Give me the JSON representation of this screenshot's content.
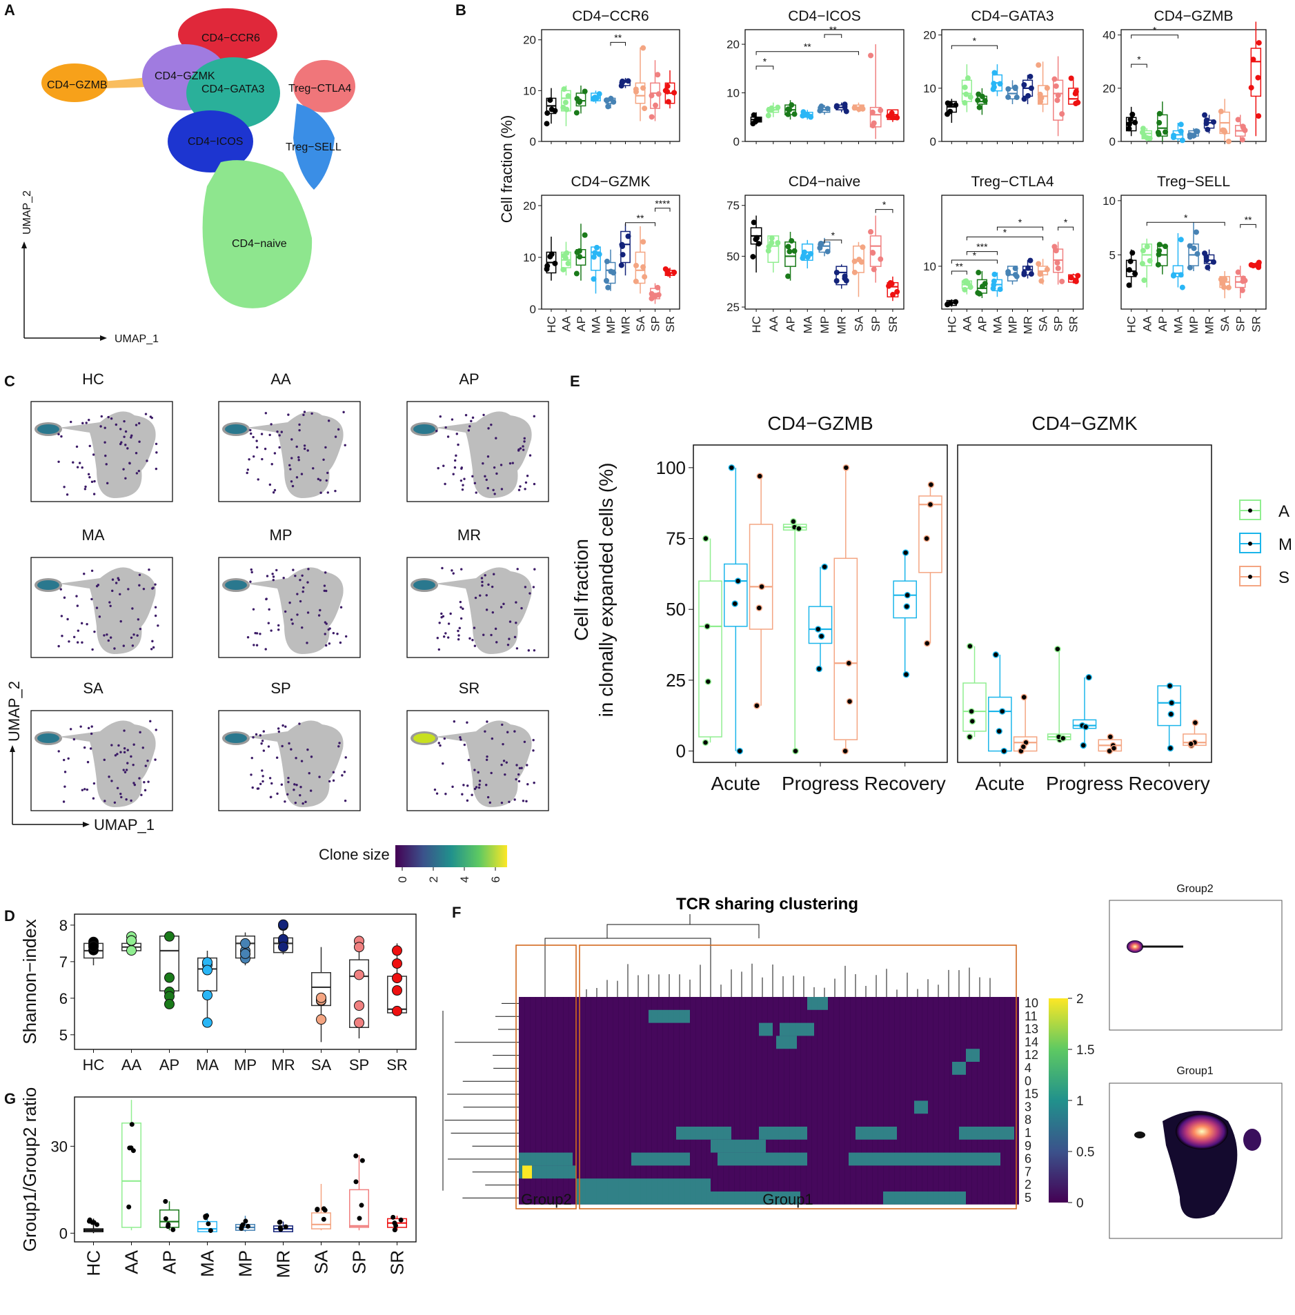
{
  "panels": {
    "A": "A",
    "B": "B",
    "C": "C",
    "D": "D",
    "E": "E",
    "F": "F",
    "G": "G"
  },
  "colors": {
    "HC": "#000000",
    "AA": "#90EE90",
    "AP": "#1a7a1a",
    "MA": "#29b6f6",
    "MP": "#4682b4",
    "MR": "#13237a",
    "SA": "#f4a582",
    "SP": "#f08080",
    "SR": "#ee1111",
    "A": "#90EE90",
    "M": "#1ab5ea",
    "S": "#f4a582"
  },
  "groups": [
    "HC",
    "AA",
    "AP",
    "MA",
    "MP",
    "MR",
    "SA",
    "SP",
    "SR"
  ],
  "umapA": {
    "labels": [
      "CD4−CCR6",
      "CD4−GZMB",
      "CD4−GZMK",
      "CD4−GATA3",
      "Treg−CTLA4",
      "CD4−ICOS",
      "Treg−SELL",
      "CD4−naive"
    ],
    "xlabel": "UMAP_1",
    "ylabel": "UMAP_2"
  },
  "clone_legend": {
    "title": "Clone size",
    "ticks": [
      "0",
      "2",
      "4",
      "6"
    ]
  },
  "chart_data": [
    {
      "panel": "B",
      "type": "box",
      "ylabel": "Cell fraction (%)",
      "facets": [
        {
          "title": "CD4−CCR6",
          "ylim": [
            0,
            22
          ],
          "yticks": [
            0,
            10,
            20
          ],
          "medians": [
            7,
            8.5,
            8,
            8.6,
            8,
            11.7,
            9,
            9.5,
            9.5
          ],
          "q1": [
            5.5,
            6,
            7,
            8,
            7.5,
            11,
            7.5,
            6.5,
            7.5
          ],
          "q3": [
            8.5,
            10,
            9.5,
            9.5,
            8.5,
            12,
            11.5,
            11.5,
            11.5
          ],
          "wlo": [
            3.5,
            3,
            5.5,
            7.5,
            6.5,
            10.5,
            4,
            4,
            6.5
          ],
          "whi": [
            10.5,
            11,
            11,
            10,
            9,
            12.5,
            18.5,
            16,
            14
          ],
          "brackets": [
            {
              "a": "MP",
              "b": "MR",
              "label": "**",
              "y": 19.5
            }
          ]
        },
        {
          "title": "CD4−ICOS",
          "ylim": [
            0,
            23
          ],
          "yticks": [
            0,
            10,
            20
          ],
          "medians": [
            4.5,
            6.5,
            6.5,
            5.5,
            6.5,
            7,
            7,
            5.5,
            5.5
          ],
          "q1": [
            4,
            6,
            5.5,
            5,
            6,
            6.5,
            6.5,
            3,
            4.5
          ],
          "q3": [
            5,
            7,
            7.5,
            6,
            7,
            7.5,
            7.5,
            7,
            6.5
          ],
          "wlo": [
            3.5,
            5,
            4.5,
            4.5,
            5.5,
            6,
            6,
            0.5,
            4
          ],
          "whi": [
            6,
            8,
            8.5,
            6.5,
            7.5,
            8,
            8,
            20,
            6.5
          ],
          "brackets": [
            {
              "a": "HC",
              "b": "AA",
              "label": "*",
              "y": 15.5
            },
            {
              "a": "HC",
              "b": "SA",
              "label": "**",
              "y": 18.5
            },
            {
              "a": "MP",
              "b": "MR",
              "label": "**",
              "y": 22
            }
          ]
        },
        {
          "title": "CD4−GATA3",
          "ylim": [
            0,
            21
          ],
          "yticks": [
            0,
            10,
            20
          ],
          "medians": [
            6.5,
            9,
            7.5,
            11,
            9,
            10,
            8.5,
            9,
            8
          ],
          "q1": [
            5.5,
            7.5,
            7,
            9.5,
            8,
            8.5,
            7,
            4,
            7
          ],
          "q3": [
            7.5,
            11.5,
            8.5,
            12.5,
            10,
            11.5,
            10.5,
            11.5,
            10
          ],
          "wlo": [
            3.5,
            5.5,
            5,
            8.5,
            7,
            7,
            5.5,
            1,
            7
          ],
          "whi": [
            8,
            14.5,
            10,
            14.5,
            11.5,
            12.5,
            15,
            16,
            12
          ],
          "brackets": [
            {
              "a": "HC",
              "b": "MA",
              "label": "*",
              "y": 18
            }
          ]
        },
        {
          "title": "CD4−GZMB",
          "ylim": [
            0,
            42
          ],
          "yticks": [
            0,
            20,
            40
          ],
          "medians": [
            7,
            3,
            5,
            2.5,
            3,
            7,
            7,
            4,
            30
          ],
          "q1": [
            4,
            1,
            2,
            1,
            2,
            5,
            3,
            2,
            17
          ],
          "q3": [
            9,
            4,
            10,
            4,
            4,
            8,
            11,
            6,
            35
          ],
          "wlo": [
            2,
            0,
            0,
            0,
            1,
            3,
            0,
            0,
            2
          ],
          "whi": [
            13,
            5,
            15,
            7,
            5,
            10,
            16,
            10,
            45
          ],
          "brackets": [
            {
              "a": "HC",
              "b": "AA",
              "label": "*",
              "y": 29
            },
            {
              "a": "HC",
              "b": "MA",
              "label": "*",
              "y": 40
            }
          ]
        }
      ]
    },
    {
      "panel": "B2",
      "type": "box",
      "facets": [
        {
          "title": "CD4−GZMK",
          "ylim": [
            0,
            22
          ],
          "yticks": [
            0,
            10,
            20
          ],
          "medians": [
            9,
            9.5,
            10,
            11,
            7.5,
            12.5,
            7.5,
            3,
            7
          ],
          "q1": [
            7,
            8,
            8.5,
            7.5,
            5,
            9,
            5,
            2,
            6.5
          ],
          "q3": [
            11,
            11,
            11.5,
            12,
            9,
            15,
            11,
            4,
            7.5
          ],
          "wlo": [
            5.5,
            6.5,
            5.5,
            3,
            3.5,
            6.5,
            3,
            1,
            6
          ],
          "whi": [
            14,
            13,
            16.5,
            12,
            11.5,
            16.5,
            16,
            5,
            8
          ],
          "brackets": [
            {
              "a": "MR",
              "b": "SP",
              "label": "**",
              "y": 16.7
            },
            {
              "a": "SP",
              "b": "SR",
              "label": "****",
              "y": 19.5
            }
          ]
        },
        {
          "title": "CD4−naive",
          "ylim": [
            24,
            80
          ],
          "yticks": [
            25,
            50,
            75
          ],
          "medians": [
            60,
            55,
            50,
            52,
            55,
            42,
            48,
            55,
            35
          ],
          "q1": [
            56,
            47,
            45,
            48,
            52,
            36,
            42,
            45,
            30
          ],
          "q3": [
            64,
            60,
            57,
            56,
            57,
            45,
            55,
            60,
            37
          ],
          "wlo": [
            42,
            42,
            38,
            44,
            50,
            34,
            30,
            37,
            28
          ],
          "whi": [
            70,
            60,
            62,
            58,
            59,
            46,
            57,
            70,
            40
          ],
          "brackets": [
            {
              "a": "MP",
              "b": "MR",
              "label": "*",
              "y": 58
            },
            {
              "a": "SP",
              "b": "SR",
              "label": "*",
              "y": 73
            }
          ]
        },
        {
          "title": "Treg−CTLA4",
          "ylim": [
            6.5,
            15.8
          ],
          "yticks": [
            10
          ],
          "medians": [
            7,
            8.5,
            8.2,
            8.5,
            9.3,
            9.7,
            9.6,
            10.5,
            9
          ],
          "q1": [
            6.8,
            8.2,
            7.8,
            8,
            8.8,
            9.3,
            9.3,
            9.5,
            8.7
          ],
          "q3": [
            7.2,
            8.8,
            8.9,
            8.9,
            10,
            10,
            10,
            11.4,
            9.3
          ],
          "wlo": [
            6.7,
            7.7,
            7.4,
            7.5,
            8.5,
            9,
            8.5,
            8.5,
            8.6
          ],
          "whi": [
            7.3,
            9,
            9.6,
            9.5,
            10,
            10.5,
            10.6,
            12,
            9.4
          ],
          "brackets": [
            {
              "a": "HC",
              "b": "AA",
              "label": "**",
              "y": 9.6
            },
            {
              "a": "HC",
              "b": "MA",
              "label": "*",
              "y": 10.5
            },
            {
              "a": "AA",
              "b": "MA",
              "label": "***",
              "y": 11.2
            },
            {
              "a": "AA",
              "b": "SA",
              "label": "*",
              "y": 12.4
            },
            {
              "a": "MA",
              "b": "SA",
              "label": "*",
              "y": 13.2
            },
            {
              "a": "SP",
              "b": "SR",
              "label": "*",
              "y": 13.2
            }
          ]
        },
        {
          "title": "Treg−SELL",
          "ylim": [
            0,
            10.5
          ],
          "yticks": [
            5,
            10
          ],
          "medians": [
            3.5,
            5,
            5,
            3.3,
            5,
            4.5,
            2.5,
            2.5,
            4.1
          ],
          "q1": [
            3,
            4,
            4,
            3,
            4,
            4.2,
            2,
            2,
            4
          ],
          "q3": [
            4.5,
            6,
            5.8,
            4,
            6,
            5,
            3,
            3,
            4.2
          ],
          "wlo": [
            2,
            2,
            3.2,
            2,
            3.5,
            3.5,
            1,
            1,
            3.8
          ],
          "whi": [
            5.5,
            6.5,
            6,
            7,
            8,
            5.5,
            3.5,
            4,
            4.3
          ],
          "brackets": [
            {
              "a": "AA",
              "b": "SA",
              "label": "*",
              "y": 8
            },
            {
              "a": "SP",
              "b": "SR",
              "label": "**",
              "y": 7.8
            }
          ]
        }
      ]
    },
    {
      "panel": "D",
      "type": "box",
      "ylabel": "Shannon−index",
      "ylim": [
        4.6,
        8.3
      ],
      "yticks": [
        5,
        6,
        7,
        8
      ],
      "medians": [
        7.3,
        7.4,
        7.3,
        6.8,
        7.5,
        7.5,
        6.3,
        6.6,
        5.7
      ],
      "q1": [
        7.1,
        7.3,
        6.2,
        6.2,
        7.1,
        7.25,
        5.8,
        5.2,
        5.6
      ],
      "q3": [
        7.5,
        7.5,
        7.7,
        7.1,
        7.7,
        7.65,
        6.7,
        7.05,
        6.6
      ],
      "wlo": [
        6.9,
        7.2,
        5.8,
        5.2,
        6.9,
        7.2,
        4.8,
        4.9,
        5.6
      ],
      "whi": [
        7.6,
        7.8,
        7.7,
        7.3,
        7.8,
        8.05,
        7.4,
        7.6,
        7.5
      ]
    },
    {
      "panel": "E",
      "type": "box",
      "ylabel": "Cell fraction\nin clonally expanded cells (%)",
      "ylim": [
        -4,
        108
      ],
      "yticks": [
        0,
        25,
        50,
        75,
        100
      ],
      "facets": [
        {
          "title": "CD4−GZMB",
          "categories": [
            "Acute",
            "Progress",
            "Recovery"
          ],
          "boxes": [
            {
              "cat": 0,
              "grp": "A",
              "med": 44,
              "q1": 5,
              "q3": 60,
              "lo": 3,
              "hi": 75
            },
            {
              "cat": 0,
              "grp": "M",
              "med": 60,
              "q1": 44,
              "q3": 66,
              "lo": 0,
              "hi": 100
            },
            {
              "cat": 0,
              "grp": "S",
              "med": 58,
              "q1": 43,
              "q3": 80,
              "lo": 16,
              "hi": 97
            },
            {
              "cat": 1,
              "grp": "A",
              "med": 79,
              "q1": 78,
              "q3": 80,
              "lo": 0,
              "hi": 81
            },
            {
              "cat": 1,
              "grp": "M",
              "med": 43,
              "q1": 38,
              "q3": 51,
              "lo": 29,
              "hi": 65
            },
            {
              "cat": 1,
              "grp": "S",
              "med": 31,
              "q1": 4,
              "q3": 68,
              "lo": 0,
              "hi": 100
            },
            {
              "cat": 2,
              "grp": "M",
              "med": 55,
              "q1": 47,
              "q3": 60,
              "lo": 27,
              "hi": 70
            },
            {
              "cat": 2,
              "grp": "S",
              "med": 87,
              "q1": 63,
              "q3": 90,
              "lo": 38,
              "hi": 94
            }
          ]
        },
        {
          "title": "CD4−GZMK",
          "categories": [
            "Acute",
            "Progress",
            "Recovery"
          ],
          "boxes": [
            {
              "cat": 0,
              "grp": "A",
              "med": 14,
              "q1": 7,
              "q3": 24,
              "lo": 5,
              "hi": 37
            },
            {
              "cat": 0,
              "grp": "M",
              "med": 14,
              "q1": 0,
              "q3": 19,
              "lo": 0,
              "hi": 34
            },
            {
              "cat": 0,
              "grp": "S",
              "med": 3,
              "q1": 0,
              "q3": 5,
              "lo": 0,
              "hi": 19
            },
            {
              "cat": 1,
              "grp": "A",
              "med": 5,
              "q1": 4,
              "q3": 6,
              "lo": 4,
              "hi": 36
            },
            {
              "cat": 1,
              "grp": "M",
              "med": 9,
              "q1": 8,
              "q3": 11,
              "lo": 2,
              "hi": 26
            },
            {
              "cat": 1,
              "grp": "S",
              "med": 2,
              "q1": 0,
              "q3": 4,
              "lo": 0,
              "hi": 5
            },
            {
              "cat": 2,
              "grp": "M",
              "med": 17,
              "q1": 9,
              "q3": 23,
              "lo": 1,
              "hi": 23
            },
            {
              "cat": 2,
              "grp": "S",
              "med": 3,
              "q1": 2,
              "q3": 6,
              "lo": 2,
              "hi": 10
            }
          ]
        }
      ],
      "legend": [
        "A",
        "M",
        "S"
      ]
    },
    {
      "panel": "F",
      "type": "heatmap",
      "title": "TCR sharing clustering",
      "rows": [
        "10",
        "11",
        "13",
        "14",
        "12",
        "4",
        "0",
        "15",
        "3",
        "8",
        "1",
        "9",
        "6",
        "7",
        "2",
        "5"
      ],
      "colorbar_ticks": [
        "2",
        "1.5",
        "1",
        "0.5",
        "0"
      ],
      "group_labels": [
        "Group2",
        "Group1"
      ],
      "density_titles": [
        "Group2",
        "Group1"
      ]
    },
    {
      "panel": "G",
      "type": "box",
      "ylabel": "Group1/Group2 ratio",
      "ylim": [
        -3,
        47
      ],
      "yticks": [
        0,
        30
      ],
      "medians": [
        1,
        18,
        4,
        1.5,
        2,
        1.5,
        3,
        2.5,
        3.5
      ],
      "q1": [
        0.5,
        2,
        2,
        0.5,
        1,
        0.5,
        1.5,
        2,
        2
      ],
      "q3": [
        1.5,
        38,
        8,
        4,
        3,
        2.5,
        7,
        15,
        5
      ],
      "wlo": [
        0,
        1,
        1,
        0.5,
        0.5,
        0.5,
        1,
        1,
        1
      ],
      "whi": [
        5,
        46,
        11,
        7,
        6,
        4,
        17,
        27,
        6
      ]
    }
  ]
}
